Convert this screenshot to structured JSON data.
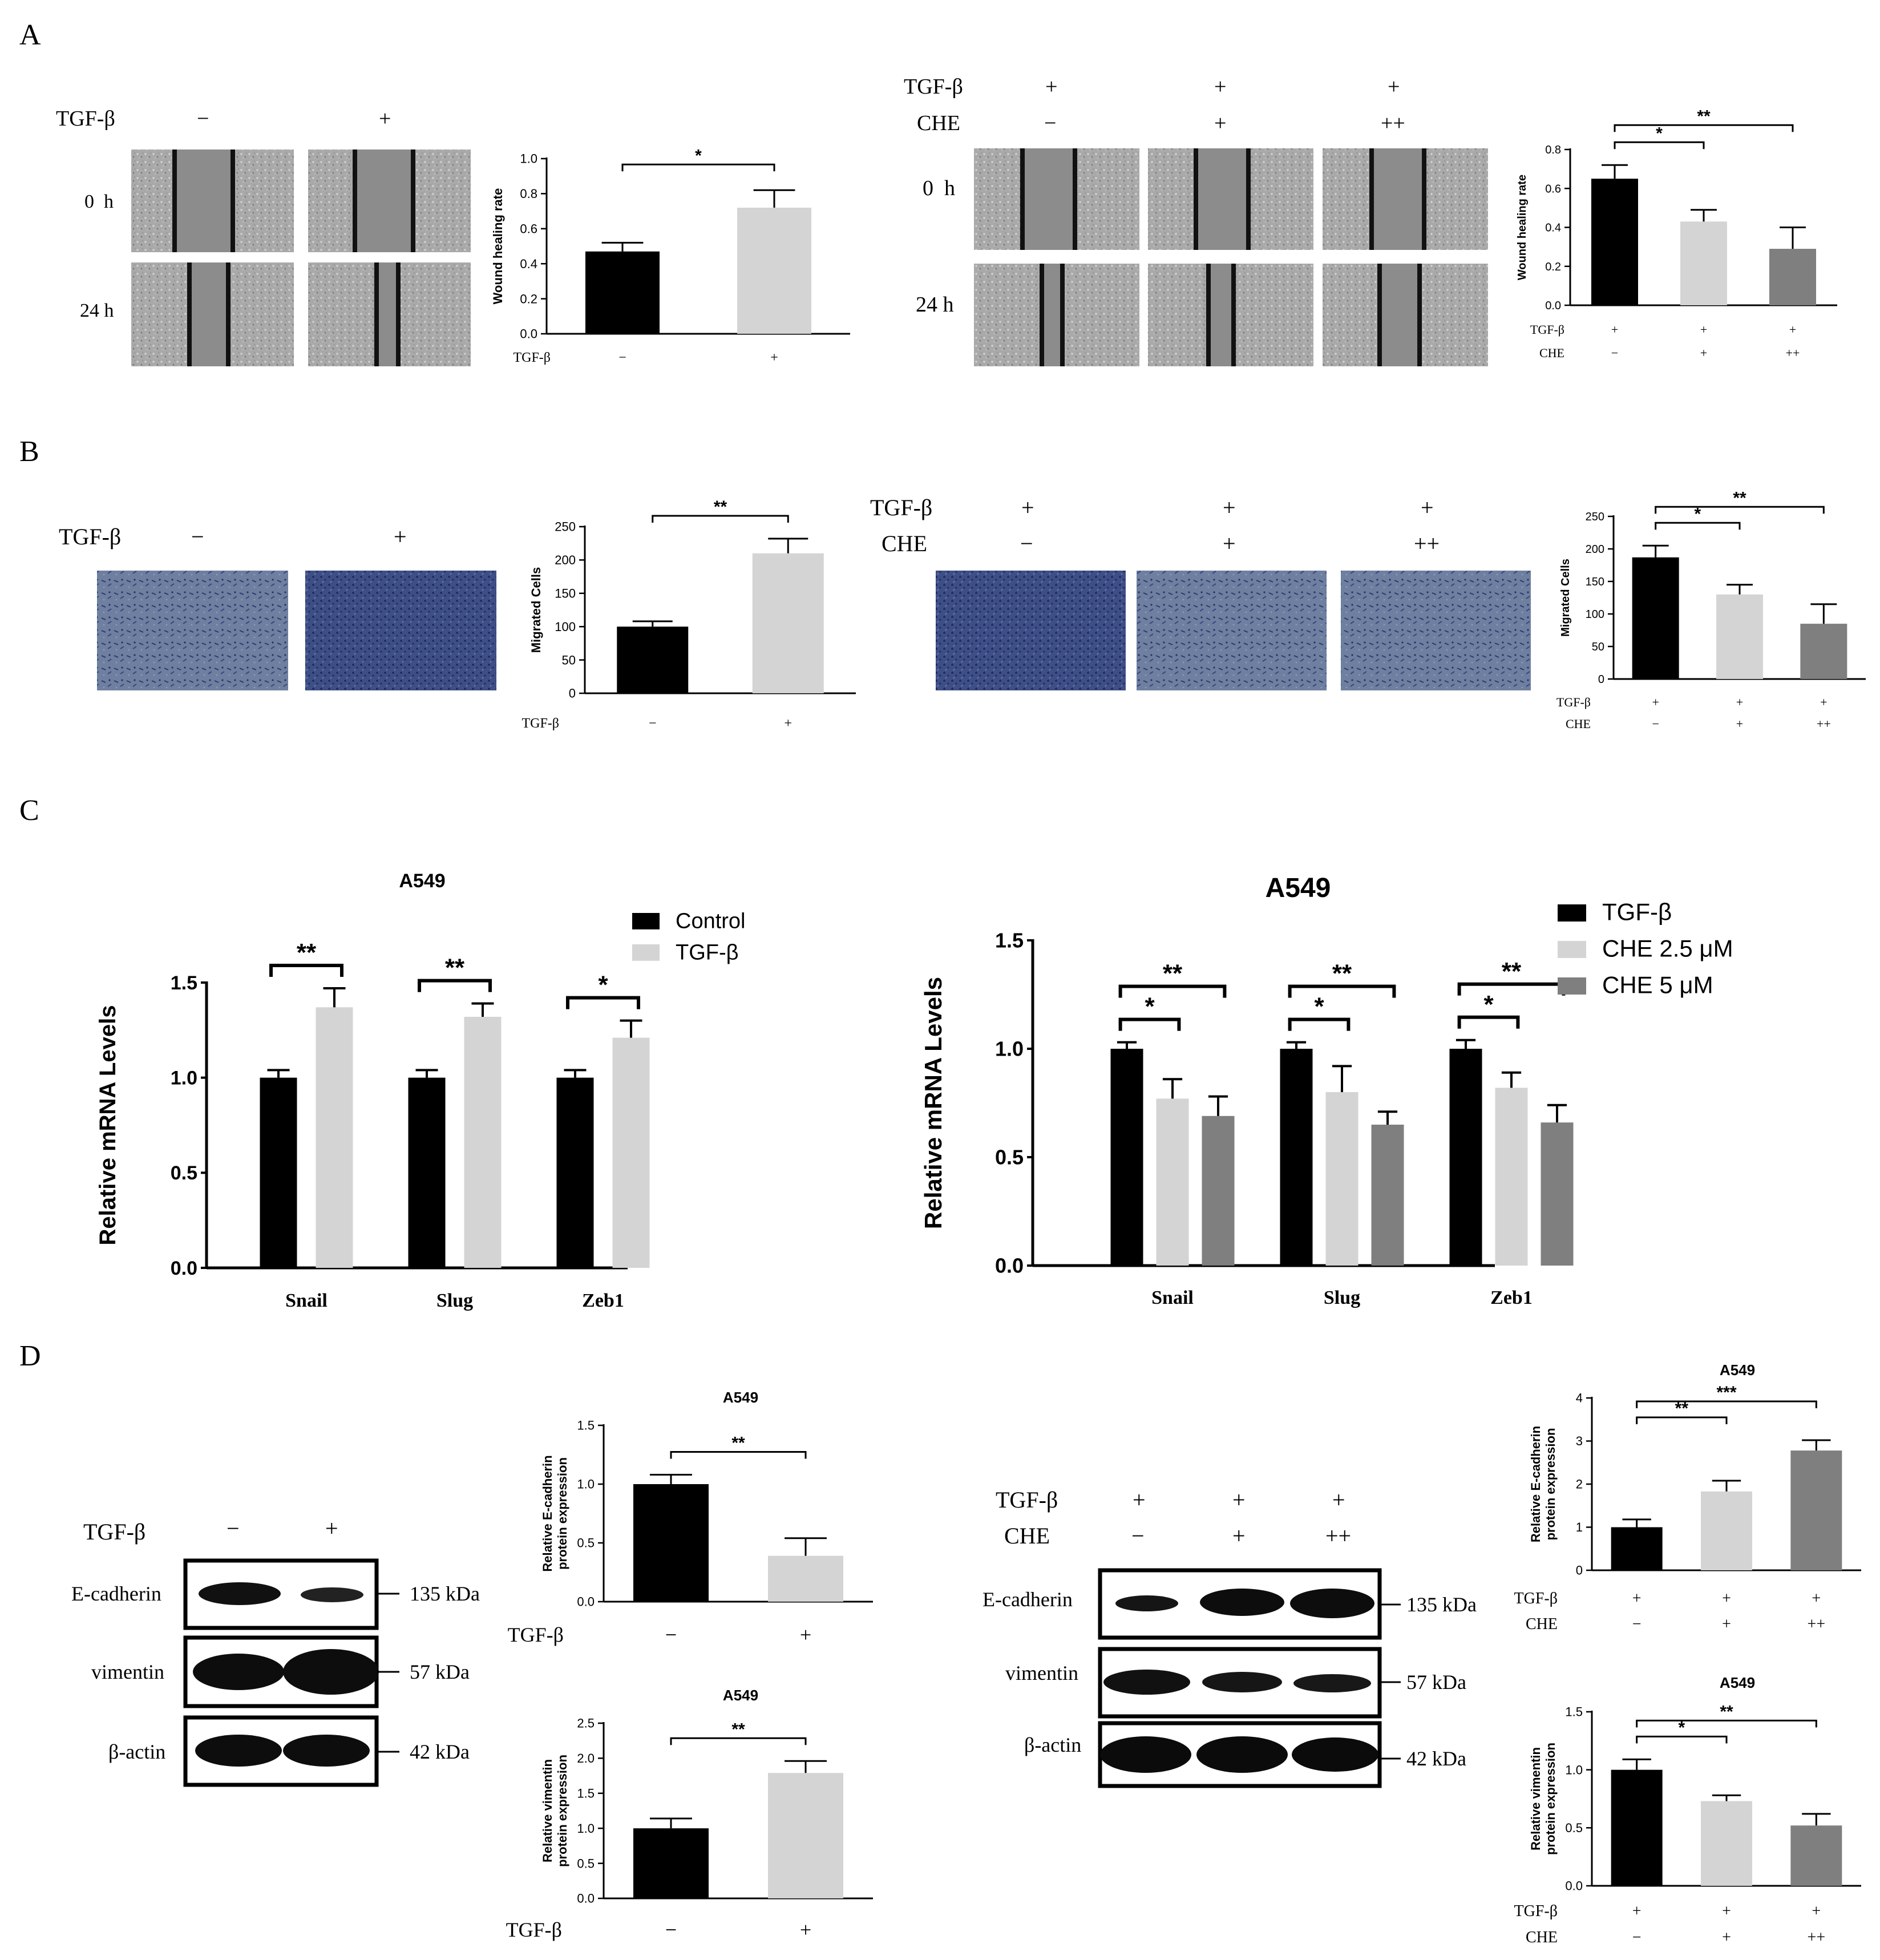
{
  "panels": {
    "A": {
      "letter": "A"
    },
    "B": {
      "letter": "B"
    },
    "C": {
      "letter": "C"
    },
    "D": {
      "letter": "D"
    }
  },
  "common": {
    "tgf": "TGF-β",
    "che": "CHE",
    "minus": "−",
    "plus": "+",
    "plusplus": "++"
  },
  "wound_images": {
    "time_0": "0  h",
    "time_24": "24 h"
  },
  "blots": {
    "markers": [
      "E-cadherin",
      "vimentin",
      "β-actin"
    ],
    "sizes": [
      "135 kDa",
      "57 kDa",
      "42 kDa"
    ]
  },
  "colors": {
    "black": "#000000",
    "light_gray": "#d4d4d4",
    "dark_gray": "#7f7f7f",
    "micro_bg": "#a9a9a9",
    "transwell_bg": "#6f7fa0"
  },
  "chart_data": [
    {
      "id": "A_left",
      "type": "bar",
      "ylabel": "Wound healing rate",
      "ylim": [
        0,
        1.0
      ],
      "yticks": [
        "0.0",
        "0.2",
        "0.4",
        "0.6",
        "0.8",
        "1.0"
      ],
      "values": [
        0.47,
        0.72
      ],
      "errors": [
        0.05,
        0.1
      ],
      "colors": [
        "#000000",
        "#d4d4d4"
      ],
      "rows": [
        {
          "label": "TGF-β",
          "values": [
            "−",
            "+"
          ]
        }
      ],
      "sig": [
        {
          "from": 0,
          "to": 1,
          "label": "*"
        }
      ]
    },
    {
      "id": "A_right",
      "type": "bar",
      "ylabel": "Wound healing rate",
      "ylim": [
        0,
        0.8
      ],
      "yticks": [
        "0.0",
        "0.2",
        "0.4",
        "0.6",
        "0.8"
      ],
      "values": [
        0.65,
        0.43,
        0.29
      ],
      "errors": [
        0.07,
        0.06,
        0.11
      ],
      "colors": [
        "#000000",
        "#d4d4d4",
        "#7f7f7f"
      ],
      "rows": [
        {
          "label": "TGF-β",
          "values": [
            "+",
            "+",
            "+"
          ]
        },
        {
          "label": "CHE",
          "values": [
            "−",
            "+",
            "++"
          ]
        }
      ],
      "sig": [
        {
          "from": 0,
          "to": 1,
          "label": "*"
        },
        {
          "from": 0,
          "to": 2,
          "label": "**"
        }
      ]
    },
    {
      "id": "B_left",
      "type": "bar",
      "ylabel": "Migrated Cells",
      "ylim": [
        0,
        250
      ],
      "yticks": [
        "0",
        "50",
        "100",
        "150",
        "200",
        "250"
      ],
      "values": [
        100,
        210
      ],
      "errors": [
        8,
        22
      ],
      "colors": [
        "#000000",
        "#d4d4d4"
      ],
      "rows": [
        {
          "label": "TGF-β",
          "values": [
            "−",
            "+"
          ]
        }
      ],
      "sig": [
        {
          "from": 0,
          "to": 1,
          "label": "**"
        }
      ]
    },
    {
      "id": "B_right",
      "type": "bar",
      "ylabel": "Migrated Cells",
      "ylim": [
        0,
        250
      ],
      "yticks": [
        "0",
        "50",
        "100",
        "150",
        "200",
        "250"
      ],
      "values": [
        187,
        130,
        85
      ],
      "errors": [
        18,
        15,
        30
      ],
      "colors": [
        "#000000",
        "#d4d4d4",
        "#7f7f7f"
      ],
      "rows": [
        {
          "label": "TGF-β",
          "values": [
            "+",
            "+",
            "+"
          ]
        },
        {
          "label": "CHE",
          "values": [
            "−",
            "+",
            "++"
          ]
        }
      ],
      "sig": [
        {
          "from": 0,
          "to": 1,
          "label": "*"
        },
        {
          "from": 0,
          "to": 2,
          "label": "**"
        }
      ]
    },
    {
      "id": "C_left",
      "type": "bar",
      "title": "A549",
      "ylabel": "Relative mRNA Levels",
      "ylim": [
        0,
        1.5
      ],
      "yticks": [
        "0.0",
        "0.5",
        "1.0",
        "1.5"
      ],
      "categories": [
        "Snail",
        "Slug",
        "Zeb1"
      ],
      "series": [
        {
          "name": "Control",
          "color": "#000000",
          "values": [
            1.0,
            1.0,
            1.0
          ],
          "errors": [
            0.04,
            0.04,
            0.04
          ]
        },
        {
          "name": "TGF-β",
          "color": "#d4d4d4",
          "values": [
            1.37,
            1.32,
            1.21
          ],
          "errors": [
            0.1,
            0.07,
            0.09
          ]
        }
      ],
      "sig": [
        {
          "cat": 0,
          "from": 0,
          "to": 1,
          "label": "**"
        },
        {
          "cat": 1,
          "from": 0,
          "to": 1,
          "label": "**"
        },
        {
          "cat": 2,
          "from": 0,
          "to": 1,
          "label": "*"
        }
      ],
      "legend": "top-right"
    },
    {
      "id": "C_right",
      "type": "bar",
      "title": "A549",
      "ylabel": "Relative mRNA Levels",
      "ylim": [
        0,
        1.5
      ],
      "yticks": [
        "0.0",
        "0.5",
        "1.0",
        "1.5"
      ],
      "categories": [
        "Snail",
        "Slug",
        "Zeb1"
      ],
      "series": [
        {
          "name": "TGF-β",
          "color": "#000000",
          "values": [
            1.0,
            1.0,
            1.0
          ],
          "errors": [
            0.03,
            0.03,
            0.04
          ]
        },
        {
          "name": "CHE 2.5 μM",
          "color": "#d4d4d4",
          "values": [
            0.77,
            0.8,
            0.82
          ],
          "errors": [
            0.09,
            0.12,
            0.07
          ]
        },
        {
          "name": "CHE 5 μM",
          "color": "#7f7f7f",
          "values": [
            0.69,
            0.65,
            0.66
          ],
          "errors": [
            0.09,
            0.06,
            0.08
          ]
        }
      ],
      "sig": [
        {
          "cat": 0,
          "from": 0,
          "to": 1,
          "label": "*"
        },
        {
          "cat": 0,
          "from": 0,
          "to": 2,
          "label": "**"
        },
        {
          "cat": 1,
          "from": 0,
          "to": 1,
          "label": "*"
        },
        {
          "cat": 1,
          "from": 0,
          "to": 2,
          "label": "**"
        },
        {
          "cat": 2,
          "from": 0,
          "to": 1,
          "label": "*"
        },
        {
          "cat": 2,
          "from": 0,
          "to": 2,
          "label": "**"
        }
      ],
      "legend": "top-right"
    },
    {
      "id": "D_left_top",
      "type": "bar",
      "title": "A549",
      "ylabel": [
        "Relative E-cadherin",
        "protein expression"
      ],
      "ylim": [
        0,
        1.5
      ],
      "yticks": [
        "0.0",
        "0.5",
        "1.0",
        "1.5"
      ],
      "values": [
        1.0,
        0.39
      ],
      "errors": [
        0.08,
        0.15
      ],
      "colors": [
        "#000000",
        "#d4d4d4"
      ],
      "rows": [
        {
          "label": "TGF-β",
          "values": [
            "−",
            "+"
          ]
        }
      ],
      "sig": [
        {
          "from": 0,
          "to": 1,
          "label": "**"
        }
      ]
    },
    {
      "id": "D_left_bottom",
      "type": "bar",
      "title": "A549",
      "ylabel": [
        "Relative vimentin",
        "protein expression"
      ],
      "ylim": [
        0,
        2.5
      ],
      "yticks": [
        "0.0",
        "0.5",
        "1.0",
        "1.5",
        "2.0",
        "2.5"
      ],
      "values": [
        1.0,
        1.79
      ],
      "errors": [
        0.14,
        0.17
      ],
      "colors": [
        "#000000",
        "#d4d4d4"
      ],
      "rows": [
        {
          "label": "TGF-β",
          "values": [
            "−",
            "+"
          ]
        }
      ],
      "sig": [
        {
          "from": 0,
          "to": 1,
          "label": "**"
        }
      ]
    },
    {
      "id": "D_right_top",
      "type": "bar",
      "title": "A549",
      "ylabel": [
        "Relative E-cadherin",
        "protein expression"
      ],
      "ylim": [
        0,
        4
      ],
      "yticks": [
        "0",
        "1",
        "2",
        "3",
        "4"
      ],
      "values": [
        1.0,
        1.83,
        2.78
      ],
      "errors": [
        0.18,
        0.25,
        0.24
      ],
      "colors": [
        "#000000",
        "#d4d4d4",
        "#7f7f7f"
      ],
      "rows": [
        {
          "label": "TGF-β",
          "values": [
            "+",
            "+",
            "+"
          ]
        },
        {
          "label": "CHE",
          "values": [
            "−",
            "+",
            "++"
          ]
        }
      ],
      "sig": [
        {
          "from": 0,
          "to": 1,
          "label": "**"
        },
        {
          "from": 0,
          "to": 2,
          "label": "***"
        }
      ]
    },
    {
      "id": "D_right_bottom",
      "type": "bar",
      "title": "A549",
      "ylabel": [
        "Relative vimentin",
        "protein expression"
      ],
      "ylim": [
        0,
        1.5
      ],
      "yticks": [
        "0.0",
        "0.5",
        "1.0",
        "1.5"
      ],
      "values": [
        1.0,
        0.73,
        0.52
      ],
      "errors": [
        0.09,
        0.05,
        0.1
      ],
      "colors": [
        "#000000",
        "#d4d4d4",
        "#7f7f7f"
      ],
      "rows": [
        {
          "label": "TGF-β",
          "values": [
            "+",
            "+",
            "+"
          ]
        },
        {
          "label": "CHE",
          "values": [
            "−",
            "+",
            "++"
          ]
        }
      ],
      "sig": [
        {
          "from": 0,
          "to": 1,
          "label": "*"
        },
        {
          "from": 0,
          "to": 2,
          "label": "**"
        }
      ]
    }
  ]
}
